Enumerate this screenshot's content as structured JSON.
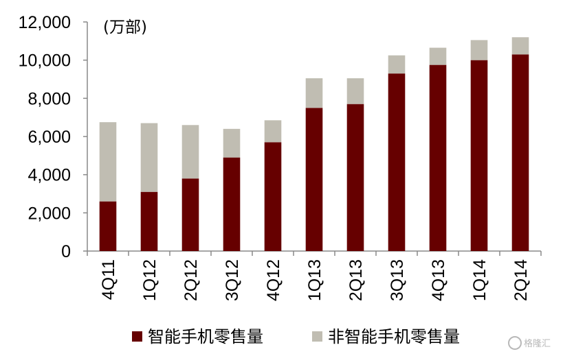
{
  "chart_data": {
    "type": "bar",
    "stacked": true,
    "unit": "(万部)",
    "categories": [
      "4Q11",
      "1Q12",
      "2Q12",
      "3Q12",
      "4Q12",
      "1Q13",
      "2Q13",
      "3Q13",
      "4Q13",
      "1Q14",
      "2Q14"
    ],
    "series": [
      {
        "name": "智能手机零售量",
        "color": "#660000",
        "values": [
          2600,
          3100,
          3800,
          4900,
          5700,
          7500,
          7700,
          9300,
          9750,
          10000,
          10300
        ]
      },
      {
        "name": "非智能手机零售量",
        "color": "#c0bdb2",
        "values": [
          4150,
          3600,
          2800,
          1500,
          1150,
          1550,
          1350,
          950,
          900,
          1050,
          900
        ]
      }
    ],
    "yticks": [
      "0",
      "2,000",
      "4,000",
      "6,000",
      "8,000",
      "10,000",
      "12,000"
    ],
    "ylim": [
      0,
      12000
    ],
    "legend_position": "bottom",
    "grid": false
  },
  "watermark": {
    "text": "格隆汇",
    "icon": "logo-icon"
  }
}
